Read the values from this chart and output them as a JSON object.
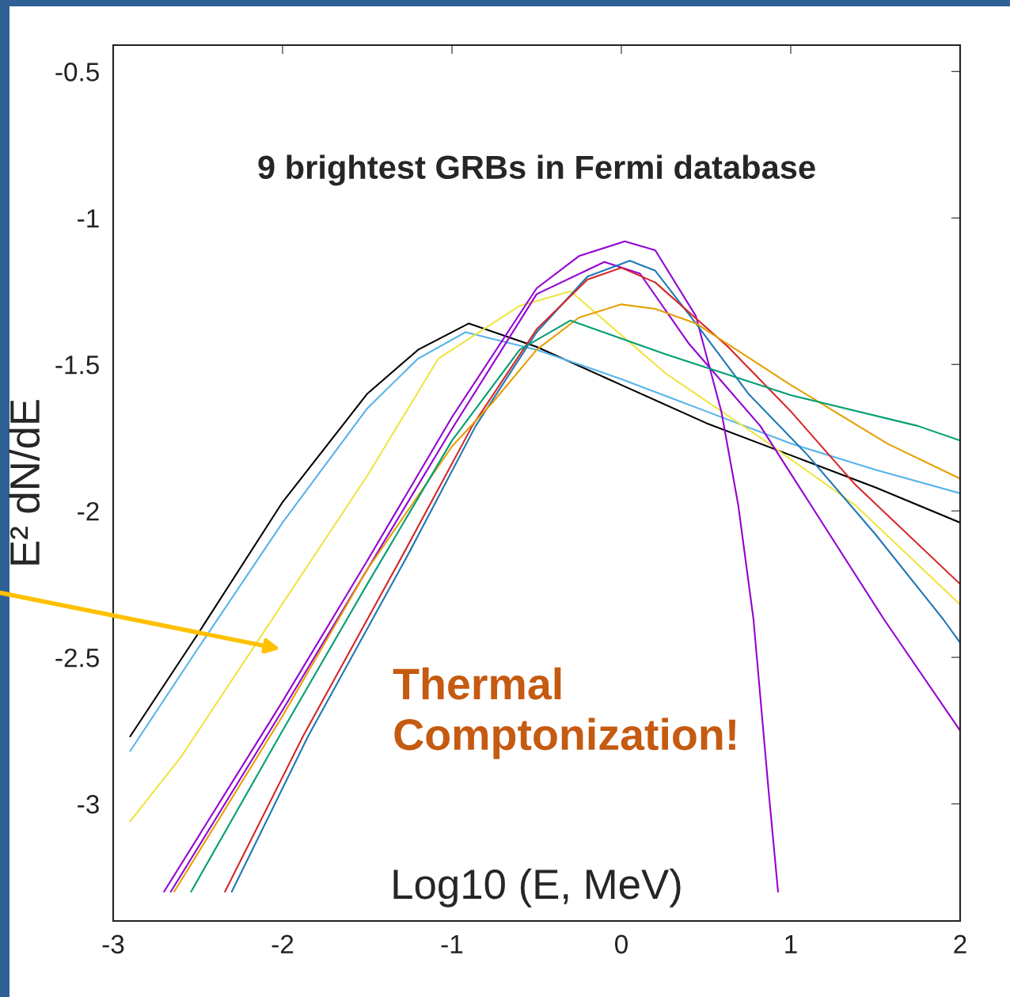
{
  "chart_data": {
    "type": "line",
    "title": "9 brightest GRBs in Fermi database",
    "xlabel": "Log10 (E, MeV)",
    "ylabel": "E² dN/dE",
    "annotations": [
      "Thermal Comptonization!"
    ],
    "xlim": [
      -3,
      2
    ],
    "xticks": [
      -3,
      -2,
      -1,
      0,
      1,
      2
    ],
    "ylim": [
      -3.4,
      -0.41
    ],
    "yticks": [
      -3,
      -2.5,
      -2,
      -1.5,
      -1,
      -0.5
    ],
    "grid": false,
    "legend": false,
    "series": [
      {
        "color": "#000000",
        "x": [
          -2.9,
          -2.5,
          -2.0,
          -1.5,
          -1.2,
          -0.9,
          -0.5,
          0.0,
          0.5,
          1.0,
          1.5,
          2.0
        ],
        "values": [
          -2.77,
          -2.42,
          -1.97,
          -1.6,
          -1.45,
          -1.36,
          -1.44,
          -1.57,
          -1.7,
          -1.81,
          -1.92,
          -2.04
        ]
      },
      {
        "color": "#56b4e9",
        "x": [
          -2.9,
          -2.5,
          -2.0,
          -1.5,
          -1.2,
          -0.92,
          -0.5,
          0.0,
          0.5,
          1.0,
          1.5,
          2.0
        ],
        "values": [
          -2.82,
          -2.47,
          -2.04,
          -1.65,
          -1.48,
          -1.39,
          -1.45,
          -1.55,
          -1.66,
          -1.77,
          -1.86,
          -1.94
        ]
      },
      {
        "color": "#f0e442",
        "x": [
          -2.9,
          -2.6,
          -2.05,
          -1.5,
          -1.08,
          -0.6,
          -0.3,
          0.26,
          0.82,
          1.38,
          2.0
        ],
        "values": [
          -3.06,
          -2.84,
          -2.36,
          -1.88,
          -1.48,
          -1.3,
          -1.25,
          -1.53,
          -1.75,
          -1.98,
          -2.32
        ]
      },
      {
        "color": "#9400d3",
        "x": [
          -2.7,
          -2.0,
          -1.5,
          -1.0,
          -0.5,
          -0.25,
          0.02,
          0.2,
          0.44,
          0.59,
          0.69,
          0.78,
          0.87,
          0.925
        ],
        "values": [
          -3.3,
          -2.65,
          -2.17,
          -1.68,
          -1.24,
          -1.13,
          -1.08,
          -1.11,
          -1.335,
          -1.66,
          -1.98,
          -2.37,
          -2.96,
          -3.3
        ]
      },
      {
        "color": "#9400d3",
        "x": [
          -2.66,
          -2.0,
          -1.5,
          -1.0,
          -0.5,
          -0.1,
          0.11,
          0.4,
          0.82,
          1.55,
          2.0
        ],
        "values": [
          -3.3,
          -2.68,
          -2.2,
          -1.72,
          -1.26,
          -1.15,
          -1.19,
          -1.43,
          -1.71,
          -2.37,
          -2.75
        ]
      },
      {
        "color": "#1f78b4",
        "x": [
          -2.3,
          -1.85,
          -1.26,
          -0.86,
          -0.5,
          -0.2,
          0.05,
          0.2,
          0.44,
          0.75,
          1.1,
          1.5,
          1.9,
          2.0
        ],
        "values": [
          -3.3,
          -2.77,
          -2.15,
          -1.71,
          -1.39,
          -1.2,
          -1.146,
          -1.18,
          -1.36,
          -1.6,
          -1.81,
          -2.08,
          -2.37,
          -2.45
        ]
      },
      {
        "color": "#d62728",
        "x": [
          -2.34,
          -1.88,
          -1.29,
          -0.88,
          -0.5,
          -0.2,
          0.0,
          0.2,
          0.63,
          1.0,
          1.38,
          2.0
        ],
        "values": [
          -3.3,
          -2.77,
          -2.15,
          -1.71,
          -1.38,
          -1.21,
          -1.17,
          -1.22,
          -1.44,
          -1.66,
          -1.91,
          -2.25
        ]
      },
      {
        "color": "#e69f00",
        "x": [
          -2.64,
          -2.0,
          -1.5,
          -1.0,
          -0.76,
          -0.5,
          -0.25,
          0.0,
          0.2,
          0.44,
          1.0,
          1.57,
          2.0
        ],
        "values": [
          -3.3,
          -2.7,
          -2.2,
          -1.78,
          -1.63,
          -1.45,
          -1.34,
          -1.295,
          -1.31,
          -1.36,
          -1.57,
          -1.77,
          -1.89
        ]
      },
      {
        "color": "#009e73",
        "x": [
          -2.54,
          -2.0,
          -1.5,
          -1.0,
          -0.6,
          -0.3,
          0.26,
          1.0,
          1.75,
          2.0
        ],
        "values": [
          -3.3,
          -2.75,
          -2.25,
          -1.76,
          -1.45,
          -1.35,
          -1.465,
          -1.605,
          -1.71,
          -1.76
        ]
      }
    ]
  }
}
